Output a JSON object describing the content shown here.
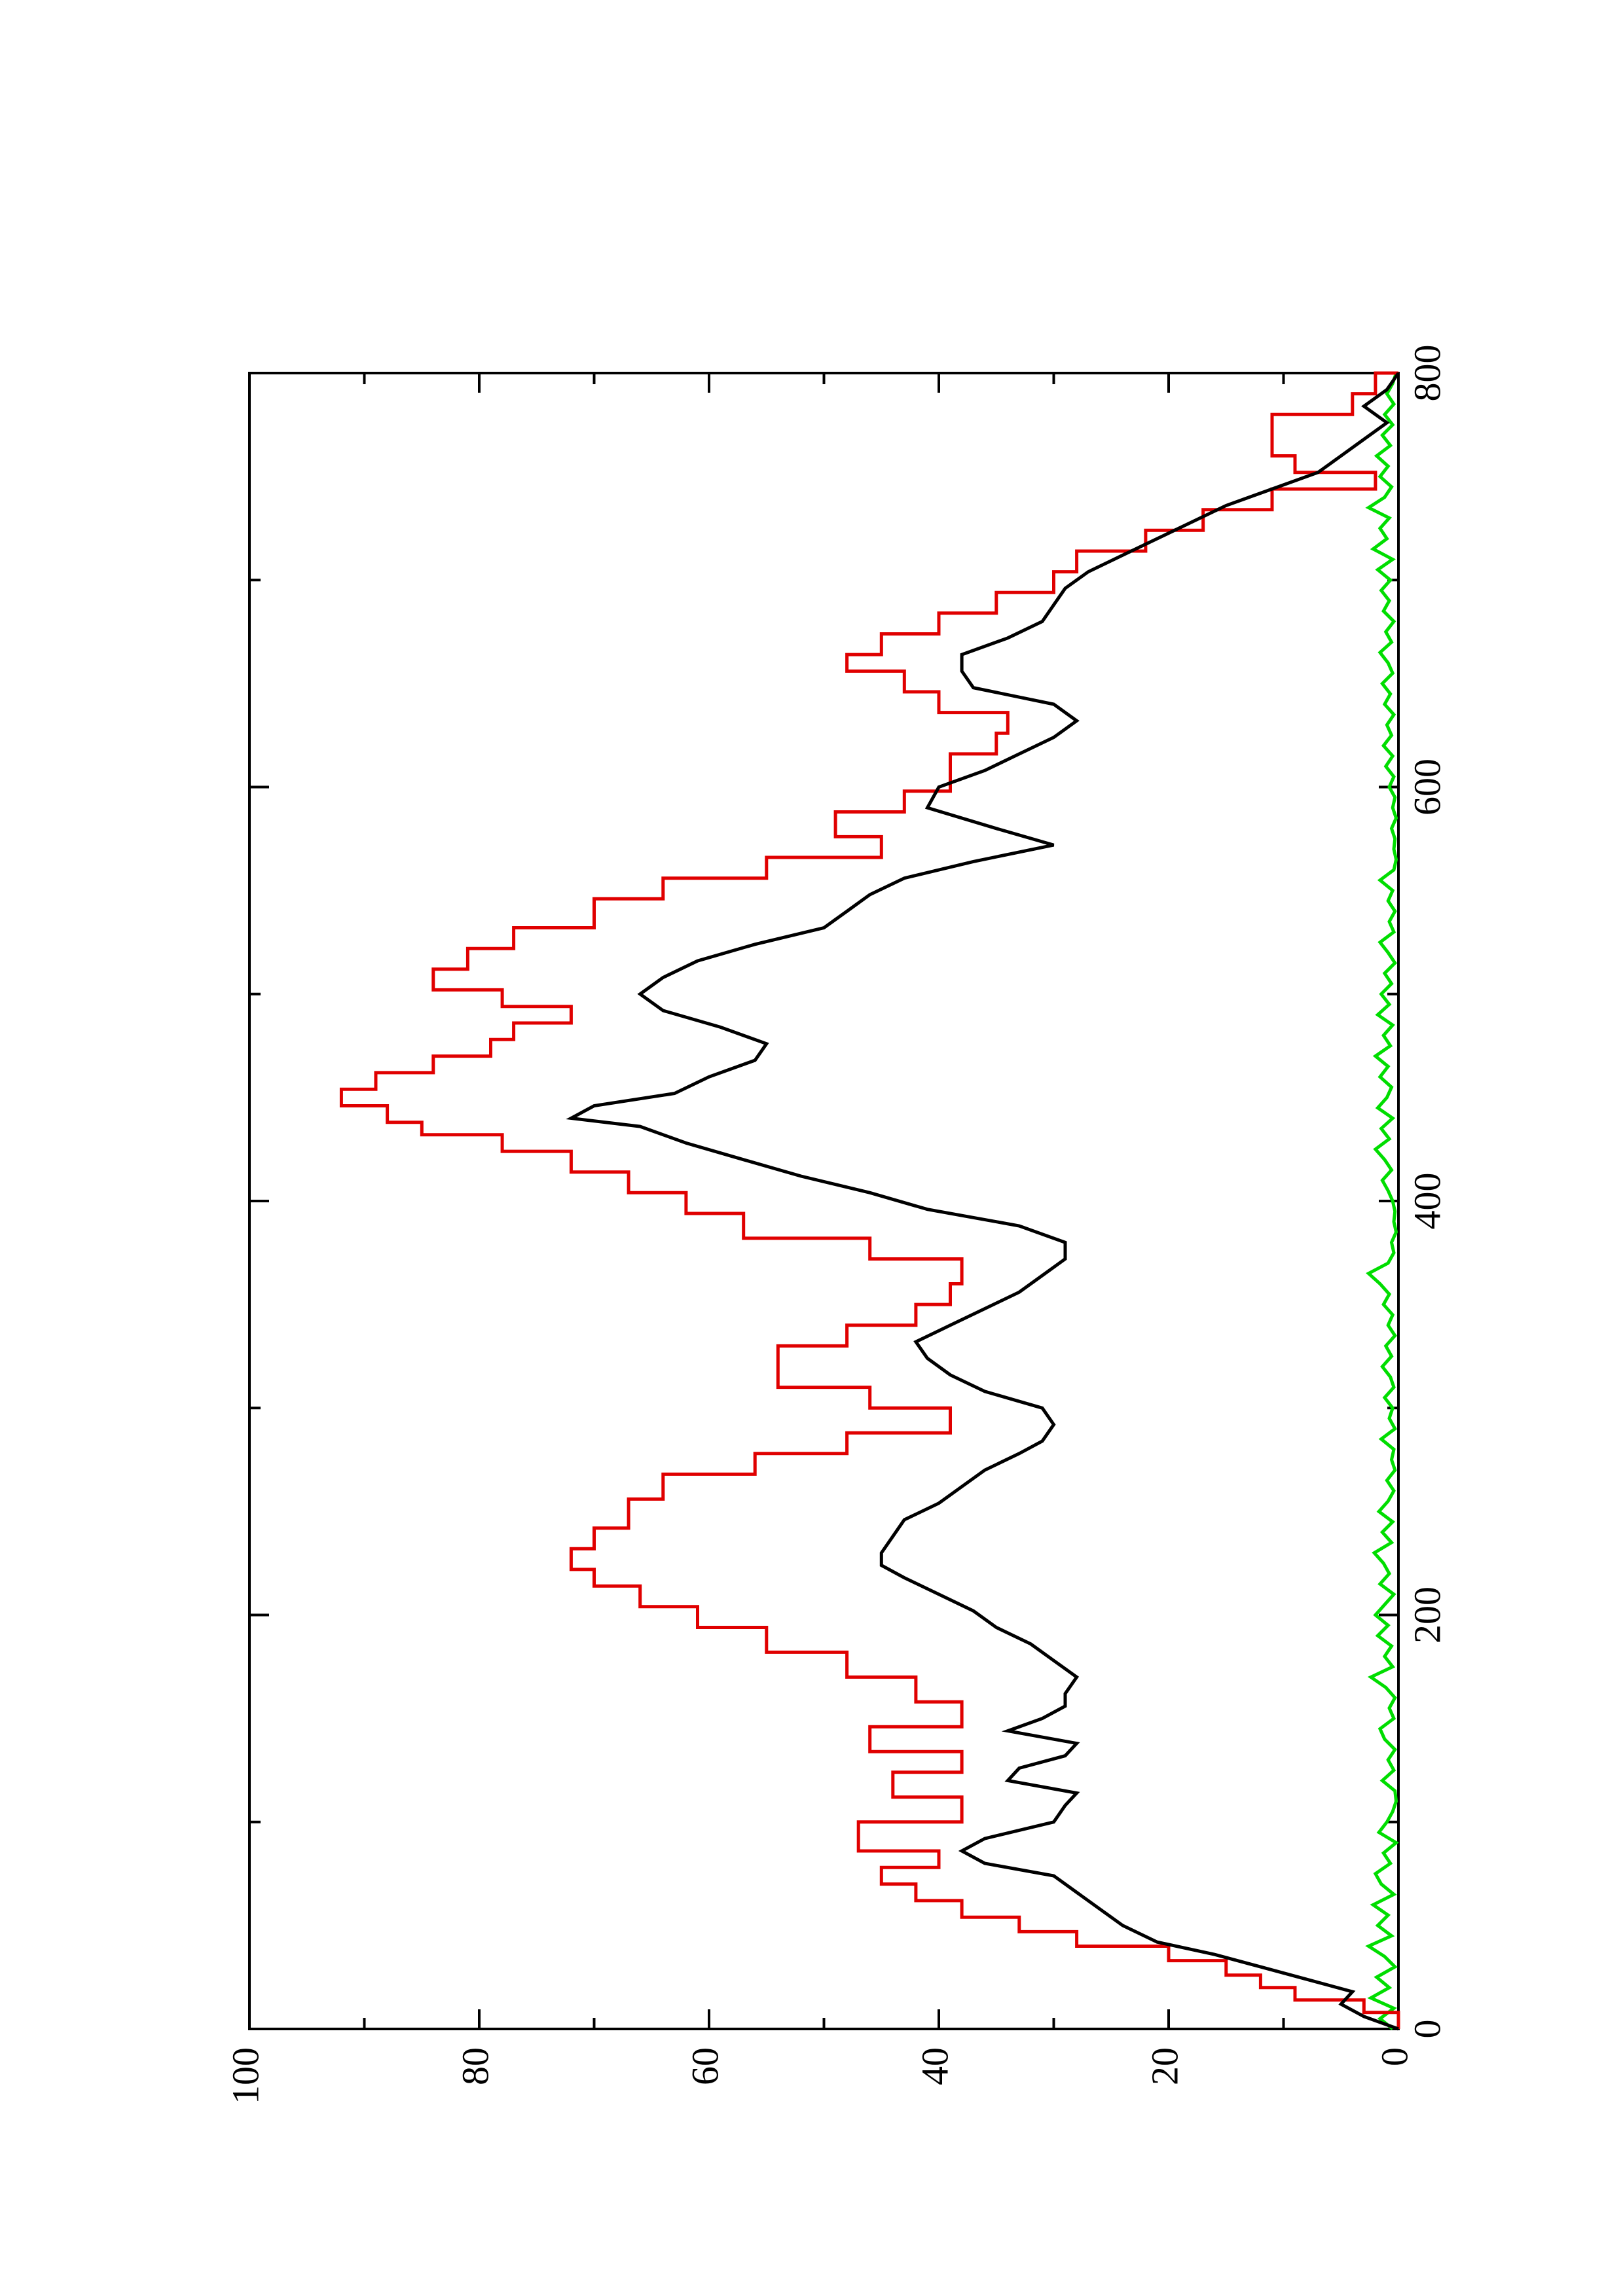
{
  "chart_data": {
    "type": "line",
    "orientation": "rotated 90 degrees counter-clockwise (page landscape)",
    "title": "",
    "xlabel": "",
    "ylabel": "",
    "xlim": [
      0,
      800
    ],
    "ylim": [
      0,
      100
    ],
    "x_ticks": [
      0,
      200,
      400,
      600,
      800
    ],
    "x_tick_labels": [
      "0",
      "200",
      "400",
      "600",
      "800"
    ],
    "x_minor_ticks": [
      100,
      300,
      500,
      700
    ],
    "y_ticks": [
      0,
      20,
      40,
      60,
      80,
      100
    ],
    "y_tick_labels": [
      "0",
      "20",
      "40",
      "60",
      "80",
      "100"
    ],
    "y_minor_ticks": [
      10,
      30,
      50,
      70,
      90
    ],
    "grid": false,
    "legend": "none",
    "series": [
      {
        "color": "#e00000",
        "style": "step",
        "x": [
          0,
          8,
          14,
          20,
          26,
          33,
          40,
          47,
          54,
          62,
          70,
          78,
          86,
          100,
          112,
          124,
          134,
          146,
          158,
          170,
          182,
          194,
          204,
          214,
          222,
          232,
          242,
          256,
          268,
          278,
          288,
          300,
          310,
          320,
          330,
          340,
          350,
          360,
          372,
          382,
          394,
          404,
          414,
          424,
          432,
          438,
          446,
          454,
          462,
          470,
          478,
          486,
          494,
          502,
          512,
          522,
          532,
          546,
          556,
          566,
          576,
          588,
          598,
          608,
          616,
          626,
          636,
          646,
          656,
          664,
          674,
          684,
          694,
          704,
          714,
          724,
          734,
          744,
          752,
          760,
          770,
          780,
          790,
          800
        ],
        "y": [
          0,
          3,
          9,
          12,
          15,
          20,
          28,
          33,
          38,
          42,
          45,
          40,
          47,
          38,
          44,
          38,
          46,
          38,
          42,
          48,
          55,
          61,
          66,
          70,
          72,
          70,
          67,
          64,
          56,
          48,
          39,
          46,
          54,
          54,
          48,
          42,
          39,
          38,
          46,
          57,
          62,
          67,
          72,
          78,
          85,
          88,
          92,
          89,
          84,
          79,
          77,
          72,
          78,
          84,
          81,
          77,
          70,
          64,
          55,
          45,
          49,
          43,
          39,
          39,
          35,
          34,
          40,
          43,
          48,
          45,
          40,
          35,
          30,
          28,
          22,
          17,
          11,
          2,
          9,
          11,
          11,
          4,
          2,
          0
        ]
      },
      {
        "color": "#000000",
        "style": "line",
        "x": [
          0,
          6,
          12,
          18,
          24,
          30,
          36,
          42,
          50,
          58,
          66,
          74,
          80,
          86,
          92,
          100,
          108,
          114,
          120,
          126,
          132,
          138,
          144,
          150,
          156,
          162,
          170,
          178,
          186,
          194,
          202,
          210,
          218,
          224,
          230,
          238,
          246,
          254,
          262,
          270,
          278,
          284,
          292,
          300,
          308,
          316,
          324,
          332,
          340,
          348,
          356,
          364,
          372,
          380,
          388,
          396,
          404,
          412,
          420,
          428,
          436,
          440,
          446,
          452,
          460,
          468,
          476,
          484,
          492,
          500,
          508,
          516,
          524,
          532,
          540,
          548,
          556,
          564,
          572,
          580,
          590,
          600,
          608,
          616,
          624,
          632,
          640,
          648,
          656,
          664,
          672,
          680,
          688,
          696,
          704,
          712,
          720,
          728,
          736,
          744,
          752,
          760,
          768,
          776,
          784,
          792,
          800
        ],
        "y": [
          0,
          3,
          5,
          4,
          8,
          12,
          16,
          21,
          24,
          26,
          28,
          30,
          36,
          38,
          36,
          30,
          29,
          28,
          34,
          33,
          29,
          28,
          34,
          31,
          29,
          29,
          28,
          30,
          32,
          35,
          37,
          40,
          43,
          45,
          45,
          44,
          43,
          40,
          38,
          36,
          33,
          31,
          30,
          31,
          36,
          39,
          41,
          42,
          39,
          36,
          33,
          31,
          29,
          29,
          33,
          41,
          46,
          52,
          57,
          62,
          66,
          72,
          70,
          63,
          60,
          56,
          55,
          59,
          64,
          66,
          64,
          61,
          56,
          50,
          48,
          46,
          43,
          37,
          30,
          35,
          41,
          40,
          36,
          33,
          30,
          28,
          30,
          37,
          38,
          38,
          34,
          31,
          30,
          29,
          27,
          24,
          21,
          18,
          15,
          11,
          7,
          5,
          3,
          1,
          3,
          1,
          0
        ]
      },
      {
        "color": "#00dd00",
        "style": "line",
        "x": [
          0,
          5,
          10,
          15,
          20,
          25,
          30,
          35,
          40,
          45,
          50,
          55,
          60,
          65,
          70,
          75,
          80,
          85,
          90,
          95,
          100,
          105,
          110,
          115,
          120,
          125,
          130,
          135,
          140,
          145,
          150,
          155,
          160,
          165,
          170,
          175,
          180,
          185,
          190,
          195,
          200,
          205,
          210,
          215,
          220,
          225,
          230,
          235,
          240,
          245,
          250,
          255,
          260,
          265,
          270,
          275,
          280,
          285,
          290,
          295,
          300,
          305,
          310,
          315,
          320,
          325,
          330,
          335,
          340,
          345,
          350,
          355,
          360,
          365,
          370,
          375,
          380,
          385,
          390,
          395,
          400,
          405,
          410,
          415,
          420,
          425,
          430,
          435,
          440,
          445,
          450,
          455,
          460,
          465,
          470,
          475,
          480,
          485,
          490,
          495,
          500,
          505,
          510,
          515,
          520,
          525,
          530,
          535,
          540,
          545,
          550,
          555,
          560,
          565,
          570,
          575,
          580,
          585,
          590,
          595,
          600,
          605,
          610,
          615,
          620,
          625,
          630,
          635,
          640,
          645,
          650,
          655,
          660,
          665,
          670,
          675,
          680,
          685,
          690,
          695,
          700,
          705,
          710,
          715,
          720,
          725,
          730,
          735,
          740,
          745,
          750,
          755,
          760,
          765,
          770,
          775,
          780,
          785,
          790,
          795,
          800
        ],
        "y": [
          0.5,
          1.6,
          0.4,
          2.4,
          0.8,
          1.9,
          0.3,
          1.2,
          2.6,
          0.6,
          1.8,
          0.9,
          2.2,
          0.4,
          1.5,
          2.0,
          0.7,
          1.3,
          0.2,
          1.7,
          1.0,
          0.5,
          0.2,
          0.3,
          1.4,
          0.4,
          0.9,
          0.3,
          1.2,
          1.6,
          0.4,
          0.8,
          0.3,
          1.1,
          2.4,
          0.5,
          1.2,
          0.6,
          1.8,
          0.9,
          2.0,
          1.2,
          0.4,
          1.6,
          0.8,
          1.3,
          2.1,
          0.6,
          1.4,
          0.5,
          1.7,
          0.9,
          0.4,
          1.0,
          0.3,
          0.6,
          0.4,
          1.5,
          0.3,
          0.8,
          0.5,
          1.2,
          0.4,
          0.7,
          1.4,
          0.6,
          1.1,
          0.3,
          0.9,
          0.5,
          1.3,
          0.8,
          1.6,
          2.6,
          0.9,
          0.4,
          0.6,
          0.2,
          0.4,
          0.3,
          0.5,
          0.9,
          1.4,
          0.6,
          1.2,
          2.0,
          0.8,
          1.5,
          0.5,
          1.8,
          1.0,
          0.6,
          1.6,
          0.9,
          2.0,
          0.7,
          1.3,
          0.5,
          1.8,
          0.8,
          1.5,
          0.6,
          1.2,
          0.3,
          0.9,
          1.6,
          0.4,
          0.8,
          0.3,
          0.9,
          0.5,
          1.6,
          0.4,
          0.2,
          0.4,
          0.3,
          0.6,
          0.2,
          0.5,
          0.3,
          0.8,
          0.4,
          1.1,
          0.5,
          1.3,
          0.6,
          1.0,
          0.4,
          1.2,
          0.7,
          1.4,
          0.5,
          0.9,
          1.6,
          0.6,
          1.1,
          0.4,
          1.3,
          0.8,
          1.5,
          0.7,
          1.8,
          0.5,
          2.2,
          1.0,
          1.6,
          0.8,
          2.6,
          1.2,
          0.6,
          1.6,
          0.9,
          1.9,
          0.7,
          1.4,
          0.5,
          1.2,
          0.4,
          1.0,
          0.5,
          0.2
        ]
      }
    ]
  }
}
